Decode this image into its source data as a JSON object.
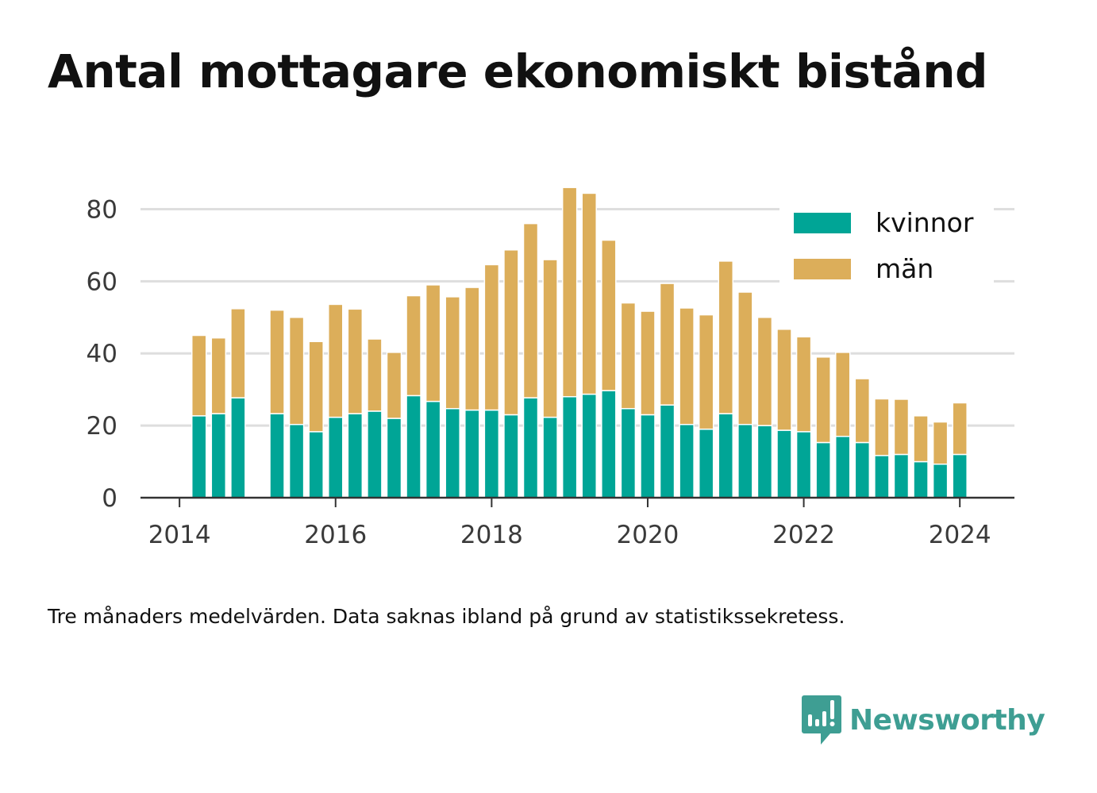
{
  "title": "Antal mottagare ekonomiskt bistånd",
  "footnote": "Tre månaders medelvärden. Data saknas ibland på grund av statistikssekretess.",
  "brand": {
    "name": "Newsworthy",
    "icon": "newsworthy-logo-icon",
    "color": "#3e9e93"
  },
  "chart_data": {
    "type": "bar",
    "stacked": true,
    "xlim": [
      2013.5,
      2024.7
    ],
    "ylim": [
      0,
      90
    ],
    "x_ticks": [
      "2014",
      "2016",
      "2018",
      "2020",
      "2022",
      "2024"
    ],
    "y_ticks": [
      "0",
      "20",
      "40",
      "60",
      "80"
    ],
    "grid": "horizontal",
    "legend_position": "top-right",
    "x": [
      2014.25,
      2014.5,
      2014.75,
      2015.25,
      2015.5,
      2015.75,
      2016.0,
      2016.25,
      2016.5,
      2016.75,
      2017.0,
      2017.25,
      2017.5,
      2017.75,
      2018.0,
      2018.25,
      2018.5,
      2018.75,
      2019.0,
      2019.25,
      2019.5,
      2019.75,
      2020.0,
      2020.25,
      2020.5,
      2020.75,
      2021.0,
      2021.25,
      2021.5,
      2021.75,
      2022.0,
      2022.25,
      2022.5,
      2022.75,
      2023.0,
      2023.25,
      2023.5,
      2023.75,
      2024.0
    ],
    "series": [
      {
        "name": "kvinnor",
        "color": "#00a596",
        "values": [
          22.7,
          23.3,
          27.7,
          23.3,
          20.3,
          18.3,
          22.3,
          23.3,
          24.0,
          22.0,
          28.3,
          26.7,
          24.7,
          24.3,
          24.3,
          23.0,
          27.7,
          22.3,
          28.0,
          28.7,
          29.7,
          24.7,
          23.0,
          25.7,
          20.3,
          19.0,
          23.3,
          20.3,
          20.0,
          18.7,
          18.3,
          15.3,
          17.0,
          15.3,
          11.7,
          12.0,
          10.0,
          9.3,
          12.0
        ]
      },
      {
        "name": "män",
        "color": "#dcae5a",
        "values": [
          22.3,
          21.0,
          24.7,
          28.7,
          29.7,
          25.0,
          31.3,
          29.0,
          20.0,
          18.3,
          27.7,
          32.3,
          31.0,
          34.0,
          40.3,
          45.7,
          48.3,
          43.7,
          58.0,
          55.7,
          41.7,
          29.3,
          28.7,
          33.7,
          32.3,
          31.7,
          42.3,
          36.7,
          30.0,
          28.0,
          26.3,
          23.7,
          23.3,
          17.7,
          15.7,
          15.3,
          12.7,
          11.7,
          14.3
        ]
      }
    ]
  }
}
